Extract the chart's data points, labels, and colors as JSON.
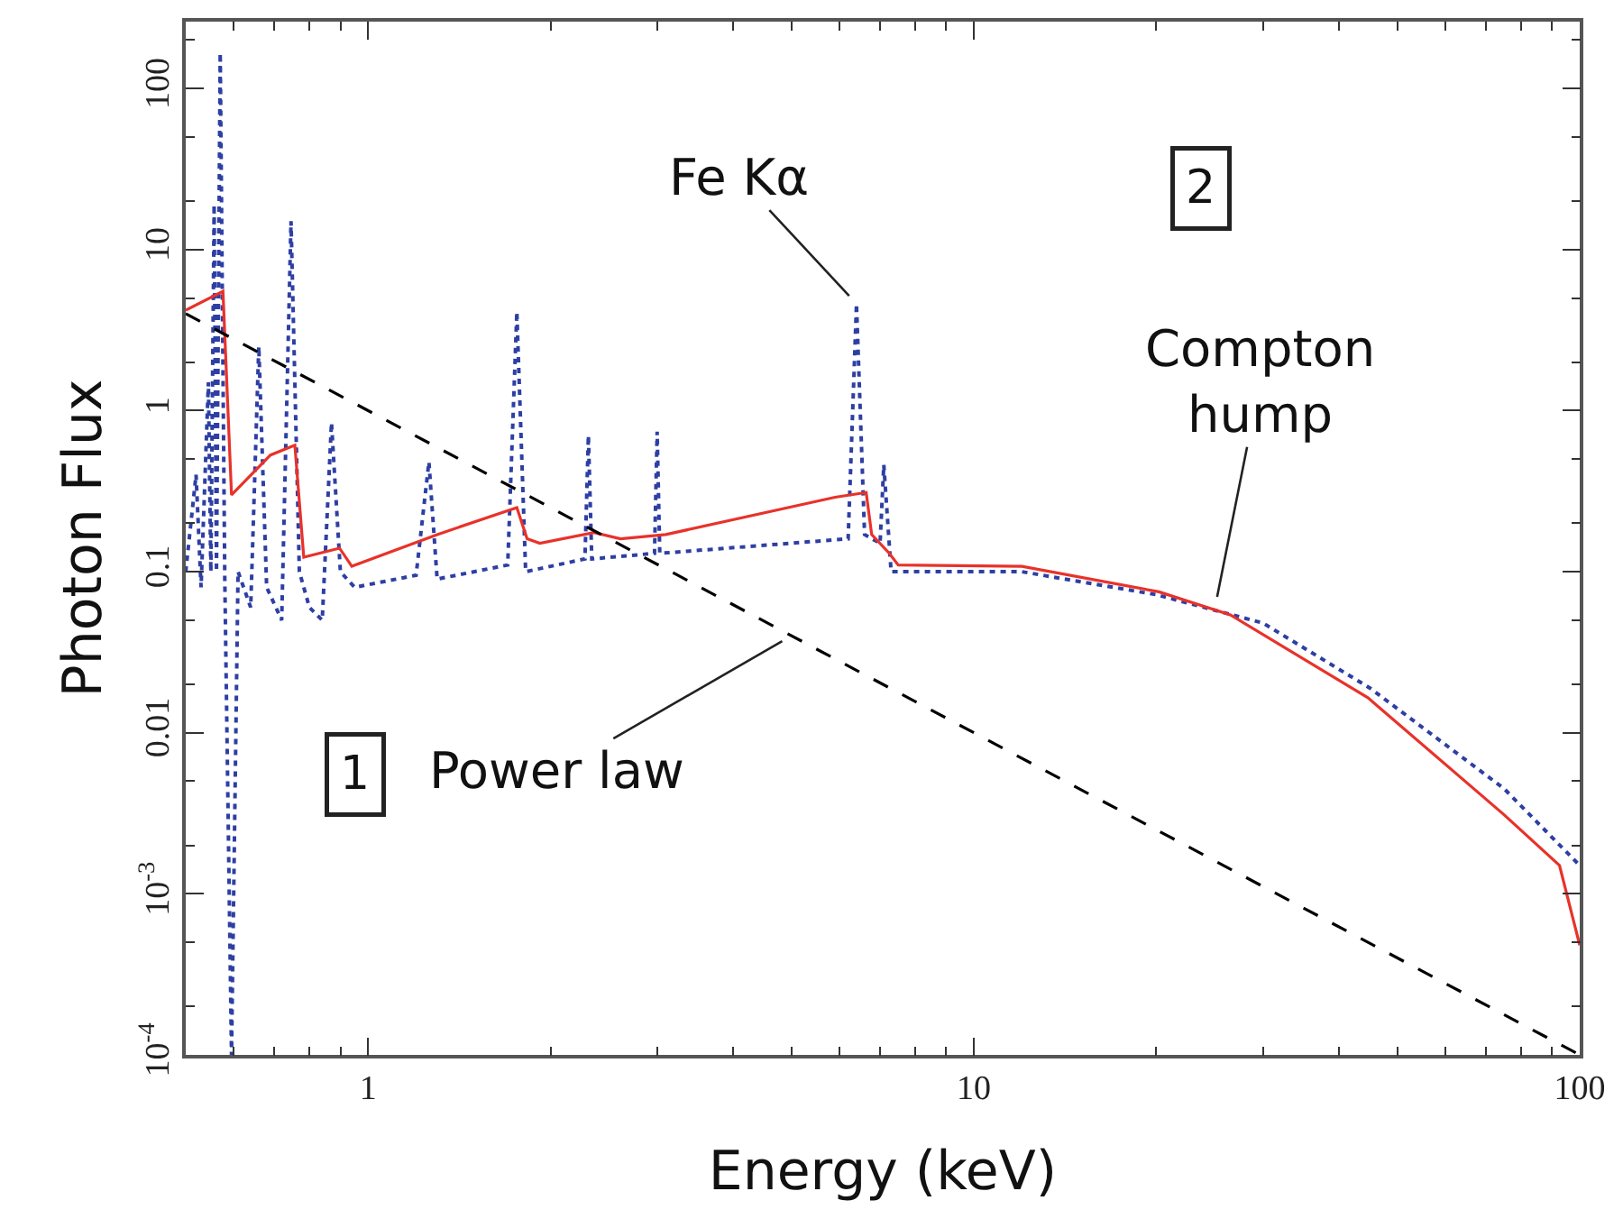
{
  "chart_data": {
    "type": "line",
    "xlabel": "Energy (keV)",
    "ylabel": "Photon Flux",
    "log": "xy",
    "marker": "none",
    "xlim": [
      0.5,
      100
    ],
    "xticks": [
      1,
      10,
      100
    ],
    "ylim": [
      0.0001,
      260
    ],
    "yticks": [
      {
        "value": 0.0001,
        "label": "10$^{-4}$"
      },
      {
        "value": 0.001,
        "label": "10$^{-3}$"
      },
      0.01,
      0.1,
      1,
      10,
      100
    ],
    "series": [
      {
        "color": "#2e3fa3",
        "line_style": "dotted",
        "x": [
          0.5,
          0.52,
          0.53,
          0.545,
          0.55,
          0.557,
          0.562,
          0.57,
          0.58,
          0.595,
          0.61,
          0.64,
          0.66,
          0.68,
          0.72,
          0.746,
          0.77,
          0.8,
          0.84,
          0.87,
          0.9,
          0.95,
          1.2,
          1.26,
          1.3,
          1.7,
          1.76,
          1.82,
          2.28,
          2.31,
          2.34,
          2.97,
          3.0,
          3.03,
          6.2,
          6.4,
          6.6,
          7.0,
          7.1,
          7.3,
          12,
          20,
          30,
          45,
          75,
          100
        ],
        "values": [
          0.1,
          0.4,
          0.08,
          1.5,
          0.1,
          19,
          0.1,
          166,
          0.09,
          0.0001,
          0.1,
          0.06,
          2.5,
          0.08,
          0.05,
          15,
          0.1,
          0.06,
          0.05,
          0.84,
          0.1,
          0.08,
          0.095,
          0.48,
          0.09,
          0.11,
          4.1,
          0.1,
          0.12,
          0.7,
          0.12,
          0.13,
          0.74,
          0.13,
          0.16,
          4.6,
          0.17,
          0.15,
          0.46,
          0.1,
          0.1,
          0.072,
          0.048,
          0.019,
          0.0045,
          0.0015
        ]
      },
      {
        "color": "#e8322a",
        "line_style": "solid",
        "x": [
          0.5,
          0.576,
          0.595,
          0.69,
          0.757,
          0.783,
          0.897,
          0.94,
          1.3,
          1.76,
          1.83,
          1.92,
          2.36,
          2.61,
          3.1,
          5.9,
          6.64,
          6.78,
          7.25,
          7.5,
          12,
          20.2,
          26.5,
          44.7,
          75,
          92.6,
          100
        ],
        "values": [
          4.2,
          5.5,
          0.3,
          0.53,
          0.61,
          0.123,
          0.14,
          0.108,
          0.17,
          0.25,
          0.16,
          0.15,
          0.175,
          0.16,
          0.17,
          0.29,
          0.31,
          0.17,
          0.13,
          0.11,
          0.108,
          0.075,
          0.054,
          0.0165,
          0.0031,
          0.0015,
          0.00048
        ]
      },
      {
        "color": "#000000",
        "line_style": "dashed",
        "x": [
          0.5,
          100
        ],
        "values": [
          4,
          0.0001
        ]
      }
    ],
    "annotations": [
      {
        "text": "Fe Kα",
        "x": 6.4,
        "y": 4.6
      },
      {
        "text": "Compton\nhump",
        "x": 25,
        "y": 0.06
      },
      {
        "text": "Power law",
        "x": 5.0,
        "y": 0.04
      },
      "1",
      "2"
    ]
  }
}
